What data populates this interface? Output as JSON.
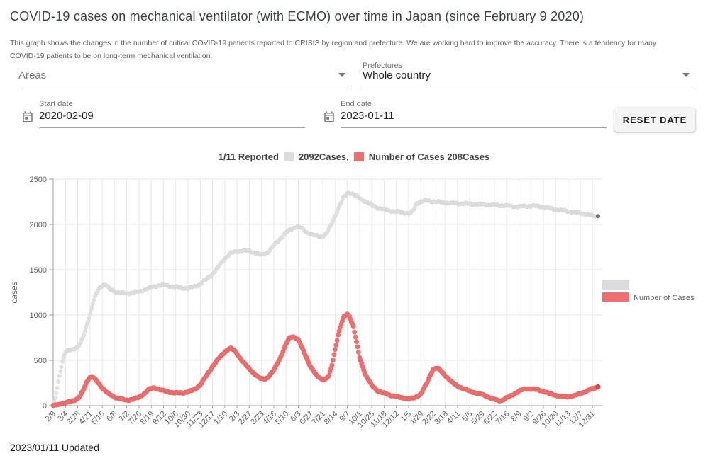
{
  "page": {
    "title": "COVID-19 cases on mechanical ventilator (with ECMO) over time in Japan (since February 9 2020)",
    "description_lines": [
      "This graph shows the changes in the number of critical COVID-19 patients reported to CRISIS by region and prefecture. We are working hard to improve the accuracy. There is a tendency for many",
      "COVID-19 patients to be on long-term mechanical ventilation."
    ],
    "updated": "2023/01/11 Updated"
  },
  "filters": {
    "areas": {
      "label": "Areas",
      "value": ""
    },
    "prefectures": {
      "label": "Prefectures",
      "value": "Whole country"
    },
    "start_date": {
      "label": "Start date",
      "value": "2020-02-09"
    },
    "end_date": {
      "label": "End date",
      "value": "2023-01-11"
    },
    "reset_button_label": "RESET DATE"
  },
  "chart_header": {
    "date_label": "1/11 Reported",
    "reported_value": "2092Cases,",
    "cases_value": "Number of Cases 208Cases"
  },
  "colors": {
    "reported_gray": "#dcdcdc",
    "cases_red": "#f26d6d",
    "grid": "#e7e7e7",
    "axis": "#9e9e9e",
    "tick_text": "#616161"
  },
  "chart_data": {
    "type": "scatter",
    "title": "",
    "xlabel": "",
    "ylabel": "cases",
    "ylim": [
      0,
      2500
    ],
    "y_ticks": [
      0,
      500,
      1000,
      1500,
      2000,
      2500
    ],
    "grid": true,
    "legend_position": "right",
    "start_date": "2020-02-09",
    "end_date": "2023-01-11",
    "total_days": 1067,
    "x_tick_interval_days": 24,
    "x_tick_labels": [
      "2/9",
      "3/4",
      "3/28",
      "4/21",
      "5/15",
      "6/8",
      "7/2",
      "7/26",
      "8/19",
      "9/12",
      "10/6",
      "10/30",
      "11/23",
      "12/17",
      "1/10",
      "2/3",
      "2/27",
      "3/23",
      "4/16",
      "5/10",
      "6/3",
      "6/27",
      "7/21",
      "8/14",
      "9/7",
      "10/1",
      "10/25",
      "11/18",
      "12/12",
      "1/5",
      "1/29",
      "2/22",
      "3/18",
      "4/11",
      "5/5",
      "5/29",
      "6/22",
      "7/16",
      "8/9",
      "9/2",
      "9/26",
      "10/20",
      "11/13",
      "12/7",
      "12/31"
    ],
    "series": [
      {
        "name": "Reported",
        "legend_label": "",
        "color": "#e2e2e2",
        "edge_color": "#cfcfcf",
        "end_color": "#6e6e6e",
        "latest_value": 2092,
        "control_points": [
          [
            0,
            0
          ],
          [
            4,
            80
          ],
          [
            8,
            200
          ],
          [
            13,
            360
          ],
          [
            18,
            490
          ],
          [
            24,
            590
          ],
          [
            36,
            620
          ],
          [
            48,
            645
          ],
          [
            54,
            690
          ],
          [
            60,
            780
          ],
          [
            66,
            900
          ],
          [
            72,
            1010
          ],
          [
            78,
            1130
          ],
          [
            84,
            1230
          ],
          [
            90,
            1295
          ],
          [
            96,
            1330
          ],
          [
            103,
            1335
          ],
          [
            110,
            1290
          ],
          [
            120,
            1260
          ],
          [
            132,
            1245
          ],
          [
            144,
            1240
          ],
          [
            156,
            1248
          ],
          [
            168,
            1258
          ],
          [
            180,
            1282
          ],
          [
            192,
            1305
          ],
          [
            204,
            1325
          ],
          [
            216,
            1332
          ],
          [
            228,
            1320
          ],
          [
            240,
            1310
          ],
          [
            252,
            1300
          ],
          [
            264,
            1295
          ],
          [
            276,
            1312
          ],
          [
            288,
            1345
          ],
          [
            300,
            1395
          ],
          [
            312,
            1455
          ],
          [
            324,
            1535
          ],
          [
            336,
            1625
          ],
          [
            348,
            1685
          ],
          [
            360,
            1700
          ],
          [
            372,
            1712
          ],
          [
            384,
            1705
          ],
          [
            396,
            1688
          ],
          [
            408,
            1662
          ],
          [
            420,
            1690
          ],
          [
            432,
            1765
          ],
          [
            444,
            1840
          ],
          [
            456,
            1910
          ],
          [
            468,
            1955
          ],
          [
            478,
            1978
          ],
          [
            486,
            1960
          ],
          [
            496,
            1915
          ],
          [
            508,
            1885
          ],
          [
            520,
            1868
          ],
          [
            528,
            1872
          ],
          [
            536,
            1905
          ],
          [
            544,
            1990
          ],
          [
            552,
            2090
          ],
          [
            560,
            2200
          ],
          [
            568,
            2290
          ],
          [
            576,
            2345
          ],
          [
            581,
            2352
          ],
          [
            588,
            2330
          ],
          [
            600,
            2290
          ],
          [
            612,
            2252
          ],
          [
            624,
            2212
          ],
          [
            636,
            2182
          ],
          [
            648,
            2165
          ],
          [
            660,
            2152
          ],
          [
            672,
            2140
          ],
          [
            684,
            2133
          ],
          [
            694,
            2124
          ],
          [
            700,
            2122
          ],
          [
            706,
            2160
          ],
          [
            712,
            2235
          ],
          [
            720,
            2252
          ],
          [
            732,
            2262
          ],
          [
            744,
            2256
          ],
          [
            756,
            2246
          ],
          [
            768,
            2240
          ],
          [
            780,
            2236
          ],
          [
            792,
            2232
          ],
          [
            804,
            2230
          ],
          [
            816,
            2226
          ],
          [
            828,
            2222
          ],
          [
            840,
            2220
          ],
          [
            852,
            2217
          ],
          [
            864,
            2214
          ],
          [
            876,
            2210
          ],
          [
            888,
            2206
          ],
          [
            900,
            2200
          ],
          [
            912,
            2196
          ],
          [
            924,
            2202
          ],
          [
            936,
            2206
          ],
          [
            948,
            2200
          ],
          [
            960,
            2194
          ],
          [
            972,
            2180
          ],
          [
            984,
            2166
          ],
          [
            996,
            2156
          ],
          [
            1008,
            2146
          ],
          [
            1020,
            2136
          ],
          [
            1032,
            2126
          ],
          [
            1044,
            2112
          ],
          [
            1056,
            2096
          ],
          [
            1067,
            2092
          ]
        ]
      },
      {
        "name": "Number of Cases",
        "legend_label": "Number of Cases",
        "color": "#f07070",
        "edge_color": "#e25f5f",
        "end_color": "#d84a4a",
        "latest_value": 208,
        "control_points": [
          [
            0,
            3
          ],
          [
            12,
            15
          ],
          [
            24,
            30
          ],
          [
            36,
            50
          ],
          [
            48,
            75
          ],
          [
            54,
            115
          ],
          [
            60,
            185
          ],
          [
            66,
            265
          ],
          [
            71,
            310
          ],
          [
            76,
            322
          ],
          [
            82,
            292
          ],
          [
            90,
            240
          ],
          [
            96,
            196
          ],
          [
            108,
            132
          ],
          [
            120,
            95
          ],
          [
            132,
            72
          ],
          [
            144,
            60
          ],
          [
            156,
            70
          ],
          [
            168,
            92
          ],
          [
            180,
            140
          ],
          [
            186,
            175
          ],
          [
            193,
            192
          ],
          [
            199,
            196
          ],
          [
            204,
            186
          ],
          [
            216,
            165
          ],
          [
            228,
            150
          ],
          [
            240,
            140
          ],
          [
            252,
            140
          ],
          [
            264,
            152
          ],
          [
            276,
            176
          ],
          [
            288,
            230
          ],
          [
            300,
            330
          ],
          [
            312,
            432
          ],
          [
            324,
            520
          ],
          [
            336,
            592
          ],
          [
            343,
            625
          ],
          [
            348,
            632
          ],
          [
            354,
            612
          ],
          [
            360,
            572
          ],
          [
            372,
            482
          ],
          [
            384,
            405
          ],
          [
            396,
            342
          ],
          [
            406,
            298
          ],
          [
            414,
            293
          ],
          [
            420,
            310
          ],
          [
            432,
            390
          ],
          [
            444,
            520
          ],
          [
            456,
            680
          ],
          [
            462,
            740
          ],
          [
            468,
            762
          ],
          [
            474,
            752
          ],
          [
            480,
            726
          ],
          [
            492,
            580
          ],
          [
            504,
            430
          ],
          [
            516,
            330
          ],
          [
            526,
            292
          ],
          [
            533,
            288
          ],
          [
            540,
            330
          ],
          [
            546,
            450
          ],
          [
            552,
            620
          ],
          [
            558,
            780
          ],
          [
            564,
            900
          ],
          [
            570,
            985
          ],
          [
            576,
            1010
          ],
          [
            580,
            992
          ],
          [
            588,
            870
          ],
          [
            594,
            700
          ],
          [
            600,
            532
          ],
          [
            606,
            432
          ],
          [
            612,
            335
          ],
          [
            624,
            222
          ],
          [
            636,
            162
          ],
          [
            648,
            136
          ],
          [
            660,
            116
          ],
          [
            672,
            100
          ],
          [
            684,
            86
          ],
          [
            696,
            74
          ],
          [
            708,
            86
          ],
          [
            720,
            130
          ],
          [
            732,
            250
          ],
          [
            738,
            330
          ],
          [
            744,
            400
          ],
          [
            750,
            415
          ],
          [
            756,
            400
          ],
          [
            768,
            332
          ],
          [
            780,
            262
          ],
          [
            792,
            215
          ],
          [
            804,
            186
          ],
          [
            816,
            160
          ],
          [
            828,
            140
          ],
          [
            840,
            124
          ],
          [
            852,
            96
          ],
          [
            864,
            70
          ],
          [
            871,
            57
          ],
          [
            878,
            56
          ],
          [
            888,
            85
          ],
          [
            900,
            120
          ],
          [
            912,
            160
          ],
          [
            920,
            178
          ],
          [
            928,
            187
          ],
          [
            936,
            185
          ],
          [
            948,
            175
          ],
          [
            960,
            160
          ],
          [
            972,
            132
          ],
          [
            984,
            115
          ],
          [
            996,
            101
          ],
          [
            1008,
            98
          ],
          [
            1020,
            110
          ],
          [
            1032,
            130
          ],
          [
            1044,
            160
          ],
          [
            1056,
            186
          ],
          [
            1067,
            208
          ]
        ]
      }
    ]
  }
}
